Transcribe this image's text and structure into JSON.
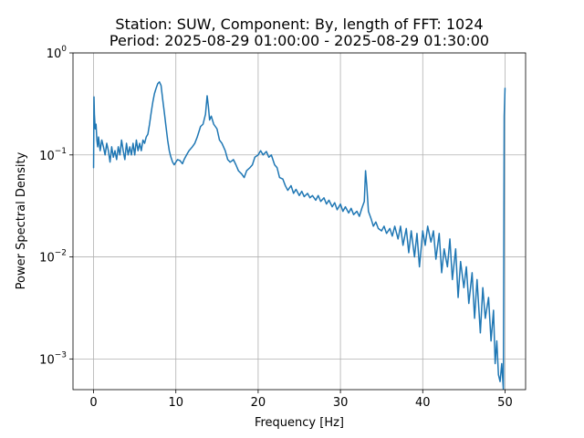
{
  "chart_data": {
    "type": "line",
    "title": "Station: SUW, Component: By, length of FFT: 1024",
    "subtitle": "Period: 2025-08-29 01:00:00 - 2025-08-29 01:30:00",
    "xlabel": "Frequency [Hz]",
    "ylabel": "Power Spectral Density",
    "xlim": [
      -2.5,
      52.5
    ],
    "ylim": [
      0.0005,
      1
    ],
    "yscale": "log",
    "grid": true,
    "xticks": [
      {
        "value": 0,
        "label": "0"
      },
      {
        "value": 10,
        "label": "10"
      },
      {
        "value": 20,
        "label": "20"
      },
      {
        "value": 30,
        "label": "30"
      },
      {
        "value": 40,
        "label": "40"
      },
      {
        "value": 50,
        "label": "50"
      }
    ],
    "yticks": [
      {
        "value": 0.001,
        "base": "10",
        "exp": "−3"
      },
      {
        "value": 0.01,
        "base": "10",
        "exp": "−2"
      },
      {
        "value": 0.1,
        "base": "10",
        "exp": "−1"
      },
      {
        "value": 1,
        "base": "10",
        "exp": "0"
      }
    ],
    "series": [
      {
        "color": "#1f77b4",
        "x": [
          0.0,
          0.05,
          0.1,
          0.2,
          0.3,
          0.4,
          0.5,
          0.6,
          0.8,
          1.0,
          1.2,
          1.4,
          1.6,
          1.8,
          2.0,
          2.2,
          2.4,
          2.6,
          2.8,
          3.0,
          3.2,
          3.4,
          3.6,
          3.8,
          4.0,
          4.2,
          4.4,
          4.6,
          4.8,
          5.0,
          5.2,
          5.4,
          5.6,
          5.8,
          6.0,
          6.2,
          6.4,
          6.6,
          6.8,
          7.0,
          7.2,
          7.4,
          7.6,
          7.8,
          8.0,
          8.2,
          8.4,
          8.6,
          8.8,
          9.0,
          9.2,
          9.4,
          9.6,
          9.8,
          10.0,
          10.2,
          10.5,
          10.8,
          11.0,
          11.3,
          11.6,
          12.0,
          12.3,
          12.6,
          13.0,
          13.3,
          13.6,
          13.8,
          13.95,
          14.1,
          14.3,
          14.6,
          15.0,
          15.3,
          15.6,
          16.0,
          16.3,
          16.6,
          17.0,
          17.3,
          17.6,
          18.0,
          18.3,
          18.6,
          19.0,
          19.3,
          19.6,
          20.0,
          20.3,
          20.6,
          21.0,
          21.3,
          21.6,
          22.0,
          22.3,
          22.6,
          23.0,
          23.3,
          23.6,
          24.0,
          24.3,
          24.6,
          25.0,
          25.3,
          25.6,
          26.0,
          26.3,
          26.6,
          27.0,
          27.3,
          27.6,
          28.0,
          28.3,
          28.6,
          29.0,
          29.3,
          29.6,
          30.0,
          30.3,
          30.6,
          31.0,
          31.3,
          31.6,
          32.0,
          32.3,
          32.6,
          32.9,
          33.05,
          33.2,
          33.4,
          33.7,
          34.0,
          34.3,
          34.6,
          35.0,
          35.3,
          35.6,
          36.0,
          36.3,
          36.6,
          37.0,
          37.3,
          37.6,
          38.0,
          38.3,
          38.6,
          39.0,
          39.3,
          39.6,
          40.0,
          40.3,
          40.6,
          41.0,
          41.3,
          41.6,
          42.0,
          42.3,
          42.6,
          43.0,
          43.3,
          43.6,
          44.0,
          44.3,
          44.6,
          45.0,
          45.3,
          45.6,
          46.0,
          46.3,
          46.6,
          47.0,
          47.3,
          47.6,
          48.0,
          48.3,
          48.6,
          48.8,
          49.0,
          49.2,
          49.4,
          49.6,
          49.8,
          49.9,
          50.0
        ],
        "y": [
          0.075,
          0.37,
          0.25,
          0.18,
          0.2,
          0.14,
          0.12,
          0.15,
          0.11,
          0.14,
          0.12,
          0.1,
          0.13,
          0.11,
          0.085,
          0.12,
          0.095,
          0.11,
          0.09,
          0.12,
          0.1,
          0.14,
          0.11,
          0.09,
          0.13,
          0.1,
          0.12,
          0.1,
          0.13,
          0.1,
          0.14,
          0.11,
          0.13,
          0.11,
          0.14,
          0.13,
          0.15,
          0.16,
          0.2,
          0.26,
          0.33,
          0.4,
          0.45,
          0.5,
          0.52,
          0.48,
          0.35,
          0.26,
          0.19,
          0.14,
          0.11,
          0.095,
          0.085,
          0.08,
          0.085,
          0.09,
          0.088,
          0.082,
          0.09,
          0.1,
          0.11,
          0.12,
          0.13,
          0.15,
          0.19,
          0.2,
          0.25,
          0.38,
          0.3,
          0.22,
          0.24,
          0.2,
          0.18,
          0.14,
          0.13,
          0.11,
          0.09,
          0.085,
          0.09,
          0.08,
          0.07,
          0.065,
          0.06,
          0.07,
          0.075,
          0.08,
          0.095,
          0.1,
          0.11,
          0.1,
          0.108,
          0.095,
          0.1,
          0.08,
          0.075,
          0.06,
          0.058,
          0.05,
          0.045,
          0.05,
          0.042,
          0.046,
          0.04,
          0.044,
          0.039,
          0.042,
          0.038,
          0.04,
          0.036,
          0.04,
          0.035,
          0.038,
          0.033,
          0.036,
          0.031,
          0.034,
          0.029,
          0.033,
          0.028,
          0.031,
          0.027,
          0.03,
          0.026,
          0.028,
          0.025,
          0.03,
          0.035,
          0.07,
          0.05,
          0.028,
          0.024,
          0.02,
          0.022,
          0.019,
          0.018,
          0.02,
          0.017,
          0.019,
          0.016,
          0.02,
          0.015,
          0.02,
          0.013,
          0.019,
          0.011,
          0.018,
          0.01,
          0.017,
          0.008,
          0.018,
          0.013,
          0.02,
          0.014,
          0.018,
          0.0095,
          0.017,
          0.007,
          0.012,
          0.008,
          0.015,
          0.006,
          0.012,
          0.004,
          0.009,
          0.005,
          0.008,
          0.0035,
          0.007,
          0.0025,
          0.006,
          0.0018,
          0.005,
          0.0025,
          0.004,
          0.0015,
          0.003,
          0.0009,
          0.0015,
          0.0007,
          0.0006,
          0.0009,
          0.0005,
          0.24,
          0.45
        ]
      }
    ]
  }
}
